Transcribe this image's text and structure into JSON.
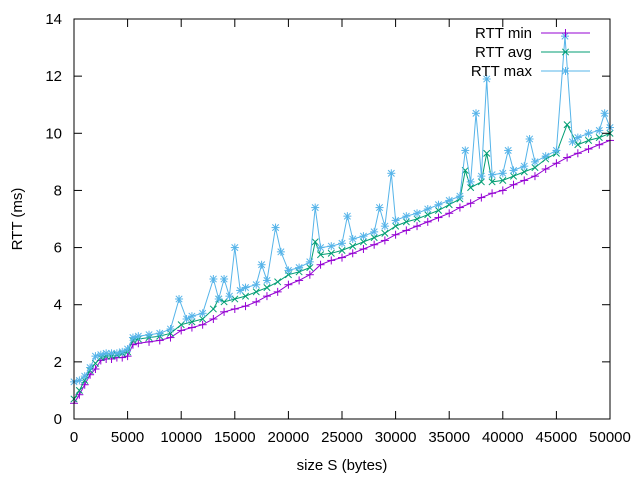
{
  "chart_data": {
    "type": "line",
    "xlabel": "size S (bytes)",
    "ylabel": "RTT (ms)",
    "xlim": [
      0,
      50000
    ],
    "ylim": [
      0,
      14
    ],
    "xticks": [
      0,
      5000,
      10000,
      15000,
      20000,
      25000,
      30000,
      35000,
      40000,
      45000,
      50000
    ],
    "yticks": [
      0,
      2,
      4,
      6,
      8,
      10,
      12,
      14
    ],
    "grid": false,
    "legend": "top-right",
    "series": [
      {
        "name": "RTT min",
        "color": "#9400d3",
        "marker": "plus",
        "x": [
          0,
          500,
          1000,
          1500,
          2000,
          2500,
          3000,
          3500,
          4000,
          4500,
          5000,
          5500,
          6000,
          7000,
          8000,
          9000,
          10000,
          11000,
          12000,
          13000,
          14000,
          15000,
          16000,
          17000,
          18000,
          19000,
          20000,
          21000,
          22000,
          23000,
          24000,
          25000,
          26000,
          27000,
          28000,
          29000,
          30000,
          31000,
          32000,
          33000,
          34000,
          35000,
          36000,
          37000,
          38000,
          39000,
          40000,
          41000,
          42000,
          43000,
          44000,
          45000,
          46000,
          47000,
          48000,
          49000,
          50000
        ],
        "y": [
          0.55,
          0.85,
          1.2,
          1.55,
          1.75,
          2.05,
          2.1,
          2.1,
          2.15,
          2.15,
          2.2,
          2.6,
          2.65,
          2.7,
          2.75,
          2.85,
          3.1,
          3.2,
          3.3,
          3.5,
          3.75,
          3.85,
          3.95,
          4.1,
          4.3,
          4.45,
          4.7,
          4.85,
          5.05,
          5.4,
          5.55,
          5.65,
          5.8,
          5.95,
          6.1,
          6.25,
          6.45,
          6.6,
          6.75,
          6.9,
          7.05,
          7.2,
          7.4,
          7.55,
          7.75,
          7.9,
          8.0,
          8.2,
          8.35,
          8.5,
          8.75,
          8.95,
          9.15,
          9.3,
          9.45,
          9.6,
          9.75
        ]
      },
      {
        "name": "RTT avg",
        "color": "#009e73",
        "marker": "cross",
        "x": [
          0,
          500,
          1000,
          1500,
          2000,
          2500,
          3000,
          3500,
          4000,
          4500,
          5000,
          5500,
          6000,
          7000,
          8000,
          9000,
          10000,
          11000,
          12000,
          13000,
          13500,
          14000,
          15000,
          16000,
          17000,
          18000,
          19000,
          20000,
          21000,
          22000,
          22500,
          23000,
          24000,
          25000,
          26000,
          27000,
          28000,
          29000,
          30000,
          31000,
          32000,
          33000,
          34000,
          35000,
          36000,
          36500,
          37000,
          38000,
          38500,
          39000,
          40000,
          41000,
          42000,
          43000,
          44000,
          45000,
          46000,
          47000,
          48000,
          49000,
          50000
        ],
        "y": [
          0.7,
          1.0,
          1.35,
          1.7,
          1.95,
          2.15,
          2.2,
          2.2,
          2.25,
          2.3,
          2.35,
          2.75,
          2.8,
          2.85,
          2.9,
          3.0,
          3.3,
          3.4,
          3.5,
          3.85,
          4.2,
          4.1,
          4.2,
          4.3,
          4.45,
          4.6,
          4.8,
          5.05,
          5.15,
          5.3,
          6.2,
          5.75,
          5.8,
          5.9,
          6.05,
          6.2,
          6.35,
          6.5,
          6.75,
          6.9,
          7.0,
          7.15,
          7.3,
          7.5,
          7.7,
          8.7,
          8.1,
          8.3,
          9.3,
          8.3,
          8.35,
          8.5,
          8.65,
          8.8,
          9.1,
          9.3,
          10.3,
          9.6,
          9.75,
          9.85,
          10.0
        ]
      },
      {
        "name": "RTT max",
        "color": "#56b4e9",
        "marker": "star",
        "x": [
          0,
          500,
          1000,
          1500,
          2000,
          2500,
          3000,
          3500,
          4000,
          4500,
          5000,
          5500,
          6000,
          7000,
          8000,
          9000,
          9800,
          10500,
          11000,
          12000,
          13000,
          13500,
          14000,
          14500,
          15000,
          15500,
          16000,
          17000,
          17500,
          18000,
          18800,
          19300,
          20000,
          21000,
          22000,
          22500,
          23000,
          24000,
          25000,
          25500,
          26000,
          27000,
          28000,
          28500,
          29000,
          29600,
          30000,
          31000,
          32000,
          33000,
          34000,
          35000,
          36000,
          36500,
          37000,
          37500,
          38000,
          38500,
          39000,
          40000,
          40500,
          41000,
          42000,
          42500,
          43000,
          44000,
          45000,
          45800,
          46500,
          47000,
          48000,
          49000,
          49500,
          50000
        ],
        "y": [
          1.3,
          1.35,
          1.5,
          1.8,
          2.2,
          2.25,
          2.3,
          2.3,
          2.3,
          2.35,
          2.45,
          2.85,
          2.9,
          2.95,
          3.0,
          3.15,
          4.2,
          3.5,
          3.6,
          3.7,
          4.9,
          4.2,
          4.9,
          4.3,
          6.0,
          4.5,
          4.6,
          4.7,
          5.4,
          4.85,
          6.7,
          5.85,
          5.2,
          5.3,
          5.5,
          7.4,
          6.0,
          6.05,
          6.15,
          7.1,
          6.3,
          6.4,
          6.55,
          7.4,
          6.75,
          8.6,
          6.95,
          7.1,
          7.2,
          7.35,
          7.5,
          7.65,
          7.8,
          9.4,
          8.3,
          10.7,
          8.5,
          11.9,
          8.55,
          8.6,
          9.4,
          8.7,
          8.85,
          9.8,
          9.0,
          9.2,
          9.4,
          13.4,
          9.7,
          9.85,
          10.0,
          10.1,
          10.7,
          10.2
        ]
      }
    ]
  }
}
